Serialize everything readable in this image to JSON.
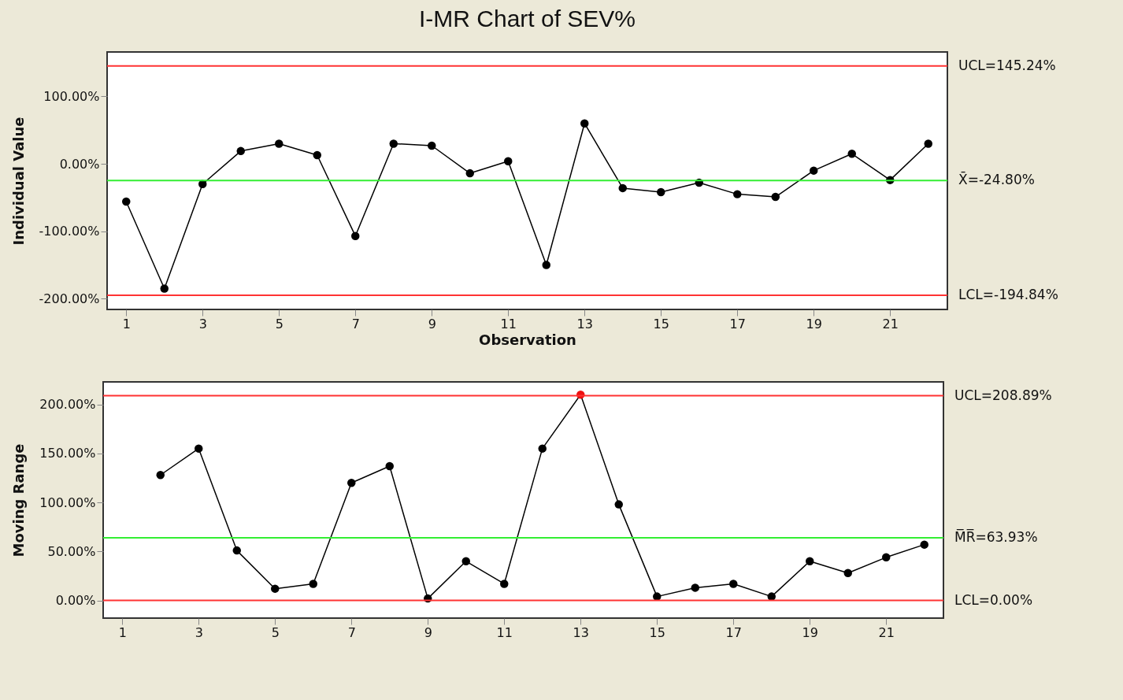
{
  "chart_data": [
    {
      "type": "line",
      "title": "I-MR Chart of SEV%",
      "xlabel": "Observation",
      "ylabel": "Individual Value",
      "x": [
        1,
        2,
        3,
        4,
        5,
        6,
        7,
        8,
        9,
        10,
        11,
        12,
        13,
        14,
        15,
        16,
        17,
        18,
        19,
        20,
        21,
        22
      ],
      "series": [
        {
          "color": "#000000",
          "values": [
            -56,
            -185,
            -30,
            19,
            30,
            13,
            -107,
            30,
            27,
            -14,
            4,
            -150,
            60,
            -36,
            -42,
            -28,
            -45,
            -49,
            -10,
            15,
            -24,
            30
          ]
        }
      ],
      "xlim": [
        0.5,
        22.5
      ],
      "xticks": [
        1,
        3,
        5,
        7,
        9,
        11,
        13,
        15,
        17,
        19,
        21
      ],
      "ylim": [
        -216,
        166
      ],
      "yticks": [
        {
          "value": 100,
          "label": "100.00%"
        },
        {
          "value": 0,
          "label": "0.00%"
        },
        {
          "value": -100,
          "label": "-100.00%"
        },
        {
          "value": -200,
          "label": "-200.00%"
        }
      ],
      "ref_lines": [
        {
          "axis": "y",
          "value": 145.24,
          "label": "UCL=145.24%",
          "color": "#ff3333"
        },
        {
          "axis": "y",
          "value": -24.8,
          "label": "X̄=-24.80%",
          "color": "#33ee33"
        },
        {
          "axis": "y",
          "value": -194.84,
          "label": "LCL=-194.84%",
          "color": "#ff3333"
        }
      ],
      "grid": false,
      "marker": "circle"
    },
    {
      "type": "line",
      "ylabel": "Moving Range",
      "x": [
        2,
        3,
        4,
        5,
        6,
        7,
        8,
        9,
        10,
        11,
        12,
        13,
        14,
        15,
        16,
        17,
        18,
        19,
        20,
        21,
        22
      ],
      "series": [
        {
          "color": "#000000",
          "colors": [
            "#000000",
            "#000000",
            "#000000",
            "#000000",
            "#000000",
            "#000000",
            "#000000",
            "#000000",
            "#000000",
            "#000000",
            "#000000",
            "#ee1111",
            "#000000",
            "#000000",
            "#000000",
            "#000000",
            "#000000",
            "#000000",
            "#000000",
            "#000000",
            "#000000"
          ],
          "values": [
            128,
            155,
            51,
            12,
            17,
            120,
            137,
            2,
            40,
            17,
            155,
            210,
            98,
            4,
            13,
            17,
            4,
            40,
            28,
            44,
            57
          ]
        }
      ],
      "xlim": [
        0.5,
        22.5
      ],
      "xticks": [
        1,
        3,
        5,
        7,
        9,
        11,
        13,
        15,
        17,
        19,
        21
      ],
      "ylim": [
        -18,
        223
      ],
      "yticks": [
        {
          "value": 200,
          "label": "200.00%"
        },
        {
          "value": 150,
          "label": "150.00%"
        },
        {
          "value": 100,
          "label": "100.00%"
        },
        {
          "value": 50,
          "label": "50.00%"
        },
        {
          "value": 0,
          "label": "0.00%"
        }
      ],
      "ref_lines": [
        {
          "axis": "y",
          "value": 208.89,
          "label": "UCL=208.89%",
          "color": "#ff3333"
        },
        {
          "axis": "y",
          "value": 63.93,
          "label": "M̅R̅=63.93%",
          "color": "#33ee33"
        },
        {
          "axis": "y",
          "value": 0,
          "label": "LCL=0.00%",
          "color": "#ff3333"
        }
      ],
      "grid": false,
      "marker": "circle"
    }
  ]
}
